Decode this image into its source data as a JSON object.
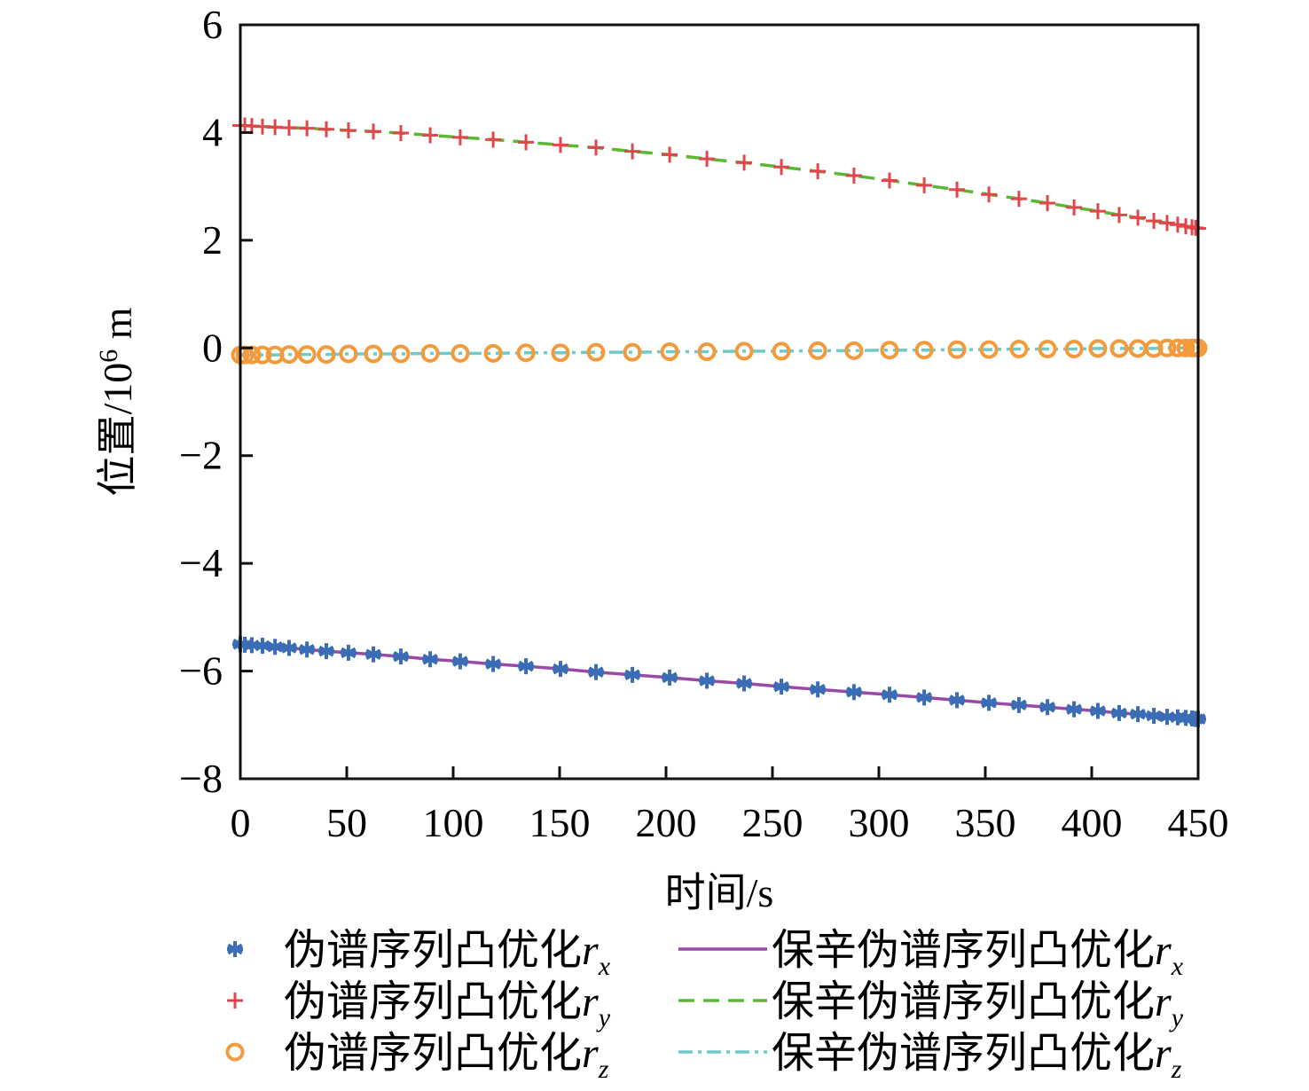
{
  "chart_data": {
    "type": "line",
    "xlabel": "时间/s",
    "ylabel": "位置/10⁶ m",
    "ylabel_parts": {
      "base": "位置/10",
      "exp": "6",
      "unit": " m"
    },
    "xlim": [
      0,
      450
    ],
    "ylim": [
      -8,
      6
    ],
    "xticks": [
      0,
      50,
      100,
      150,
      200,
      250,
      300,
      350,
      400,
      450
    ],
    "yticks": [
      -8,
      -6,
      -4,
      -2,
      0,
      2,
      4,
      6
    ],
    "ytick_labels": [
      "−8",
      "−6",
      "−4",
      "−2",
      "0",
      "2",
      "4",
      "6"
    ],
    "grid": false,
    "legend_placement": "bottom",
    "t": [
      0,
      2.1,
      5.4,
      10.4,
      16.3,
      22.9,
      31.3,
      40.4,
      50.8,
      62.5,
      75.4,
      89.2,
      103.3,
      118.8,
      134.2,
      150.4,
      167.1,
      184.2,
      201.7,
      219.2,
      236.7,
      254.2,
      271.3,
      288.3,
      305,
      321.3,
      336.7,
      351.7,
      365.8,
      379.2,
      391.7,
      402.9,
      412.9,
      421.7,
      429.2,
      435.4,
      440.4,
      444.2,
      447.1,
      448.8,
      450
    ],
    "series": [
      {
        "name": "伪谱序列凸优化r_x",
        "prefix": "伪谱序列凸优化",
        "var": "r",
        "sub": "x",
        "style": "marker",
        "marker": "asterisk",
        "color": "#3a6db5",
        "values": [
          -5.5,
          -5.51,
          -5.52,
          -5.53,
          -5.55,
          -5.57,
          -5.6,
          -5.63,
          -5.66,
          -5.69,
          -5.73,
          -5.78,
          -5.82,
          -5.87,
          -5.91,
          -5.96,
          -6.02,
          -6.07,
          -6.12,
          -6.18,
          -6.23,
          -6.29,
          -6.34,
          -6.39,
          -6.44,
          -6.49,
          -6.54,
          -6.59,
          -6.63,
          -6.67,
          -6.71,
          -6.74,
          -6.78,
          -6.8,
          -6.83,
          -6.85,
          -6.86,
          -6.87,
          -6.88,
          -6.89,
          -6.89
        ]
      },
      {
        "name": "伪谱序列凸优化r_y",
        "prefix": "伪谱序列凸优化",
        "var": "r",
        "sub": "y",
        "style": "marker",
        "marker": "plus",
        "color": "#e0474c",
        "values": [
          4.13,
          4.13,
          4.12,
          4.11,
          4.1,
          4.09,
          4.08,
          4.06,
          4.04,
          4.02,
          3.99,
          3.95,
          3.91,
          3.87,
          3.82,
          3.77,
          3.72,
          3.65,
          3.59,
          3.51,
          3.44,
          3.36,
          3.28,
          3.2,
          3.11,
          3.02,
          2.94,
          2.85,
          2.77,
          2.69,
          2.61,
          2.54,
          2.47,
          2.42,
          2.36,
          2.32,
          2.29,
          2.26,
          2.24,
          2.23,
          2.22
        ]
      },
      {
        "name": "伪谱序列凸优化r_z",
        "prefix": "伪谱序列凸优化",
        "var": "r",
        "sub": "z",
        "style": "marker",
        "marker": "circle",
        "color": "#f29a3c",
        "values": [
          -0.13,
          -0.13,
          -0.13,
          -0.13,
          -0.13,
          -0.12,
          -0.12,
          -0.12,
          -0.11,
          -0.11,
          -0.11,
          -0.1,
          -0.1,
          -0.1,
          -0.09,
          -0.09,
          -0.08,
          -0.08,
          -0.07,
          -0.07,
          -0.06,
          -0.06,
          -0.05,
          -0.05,
          -0.04,
          -0.04,
          -0.03,
          -0.03,
          -0.02,
          -0.02,
          -0.02,
          -0.01,
          -0.01,
          -0.01,
          -0.01,
          0,
          0,
          0,
          0,
          0,
          0
        ]
      },
      {
        "name": "保辛伪谱序列凸优化r_x",
        "prefix": "保辛伪谱序列凸优化",
        "var": "r",
        "sub": "x",
        "style": "line",
        "dash": "solid",
        "color": "#9a4aa6",
        "same_as": 0
      },
      {
        "name": "保辛伪谱序列凸优化r_y",
        "prefix": "保辛伪谱序列凸优化",
        "var": "r",
        "sub": "y",
        "style": "line",
        "dash": "dashed",
        "color": "#5cb834",
        "same_as": 1
      },
      {
        "name": "保辛伪谱序列凸优化r_z",
        "prefix": "保辛伪谱序列凸优化",
        "var": "r",
        "sub": "z",
        "style": "line",
        "dash": "dashdot",
        "color": "#6fcaca",
        "same_as": 2
      }
    ]
  }
}
